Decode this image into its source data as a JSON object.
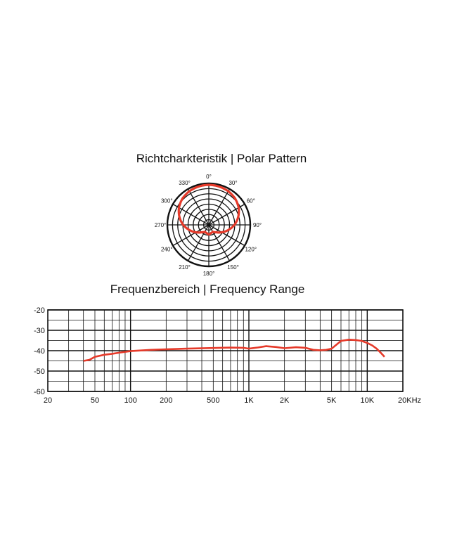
{
  "polar_title": "Richtcharkteristik | Polar Pattern",
  "frequency_title": "Frequenzbereich | Frequency Range",
  "colors": {
    "curve": "#e63a2a",
    "grid": "#111111"
  },
  "chart_data": [
    {
      "type": "polar",
      "title": "Richtcharkteristik | Polar Pattern",
      "angle_labels": [
        "0°",
        "30°",
        "60°",
        "90°",
        "120°",
        "150°",
        "180°",
        "210°",
        "240°",
        "270°",
        "300°",
        "330°"
      ],
      "angles_deg": [
        0,
        30,
        60,
        90,
        120,
        150,
        180,
        210,
        240,
        270,
        300,
        330
      ],
      "radial_rings": 8,
      "pattern": "supercardioid",
      "series": [
        {
          "angles_deg": [
            0,
            15,
            30,
            45,
            60,
            75,
            90,
            105,
            120,
            135,
            150,
            165,
            180,
            195,
            210,
            225,
            240,
            255,
            270,
            285,
            300,
            315,
            330,
            345
          ],
          "relative_level": [
            1.0,
            0.99,
            0.97,
            0.93,
            0.86,
            0.76,
            0.64,
            0.5,
            0.37,
            0.26,
            0.2,
            0.21,
            0.24,
            0.21,
            0.2,
            0.26,
            0.37,
            0.5,
            0.64,
            0.76,
            0.86,
            0.93,
            0.97,
            0.99
          ]
        }
      ]
    },
    {
      "type": "line",
      "title": "Frequenzbereich | Frequency Range",
      "x_scale": "log",
      "xlim": [
        20,
        20000
      ],
      "ylim": [
        -60,
        -20
      ],
      "x_tick_labels": [
        "20",
        "50",
        "100",
        "200",
        "500",
        "1K",
        "2K",
        "5K",
        "10K",
        "20KHz"
      ],
      "x_tick_values": [
        20,
        50,
        100,
        200,
        500,
        1000,
        2000,
        5000,
        10000,
        20000
      ],
      "y_tick_labels": [
        "-20",
        "-30",
        "-40",
        "-50",
        "-60"
      ],
      "y_tick_values": [
        -20,
        -30,
        -40,
        -50,
        -60
      ],
      "grid": true,
      "series": [
        {
          "x": [
            40,
            45,
            50,
            60,
            70,
            80,
            100,
            150,
            200,
            300,
            500,
            700,
            900,
            1000,
            1200,
            1400,
            1700,
            2000,
            2500,
            3000,
            3500,
            4000,
            4500,
            5000,
            6000,
            7000,
            8000,
            9000,
            10000,
            11000,
            12000,
            13000,
            14000
          ],
          "y": [
            -45,
            -44.5,
            -43,
            -42,
            -41.5,
            -41,
            -40.2,
            -39.6,
            -39.3,
            -39,
            -38.7,
            -38.5,
            -38.6,
            -39,
            -38.4,
            -37.8,
            -38.2,
            -38.8,
            -38.3,
            -38.6,
            -39.6,
            -39.8,
            -39.6,
            -39,
            -35.2,
            -34.6,
            -34.8,
            -35.2,
            -36.2,
            -37.4,
            -39,
            -41,
            -43
          ]
        }
      ]
    }
  ]
}
